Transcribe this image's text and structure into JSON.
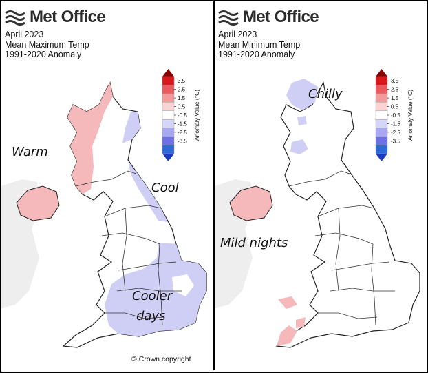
{
  "panels": [
    {
      "brand": "Met Office",
      "title_line1": "April 2023",
      "title_line2": "Mean Maximum Temp",
      "title_line3": "1991-2020 Anomaly",
      "annotations": [
        "Warm",
        "Cool",
        "Cooler",
        "days"
      ],
      "copyright": "© Crown copyright"
    },
    {
      "brand": "Met Office",
      "title_line1": "April 2023",
      "title_line2": "Mean Minimum Temp",
      "title_line3": "1991-2020 Anomaly",
      "annotations": [
        "Chilly",
        "Mild nights"
      ]
    }
  ],
  "legend": {
    "title": "Anomaly Value (°C)",
    "ticks": [
      "3.5",
      "2.5",
      "1.5",
      "0.5",
      "-0.5",
      "-1.5",
      "-2.5",
      "-3.5"
    ],
    "colors": [
      "#d7191c",
      "#ec5a5e",
      "#f59a9c",
      "#fbd3d3",
      "#ffffff",
      "#d5d5fa",
      "#a8a8f2",
      "#6f6fe6",
      "#2e6ad9"
    ]
  },
  "colors": {
    "warm_fill": "#f5b9bb",
    "cool_fill": "#cfcff5",
    "land": "#ffffff",
    "sea": "#ffffff",
    "outline": "#222222",
    "background_landmass": "#e8e8e8"
  }
}
